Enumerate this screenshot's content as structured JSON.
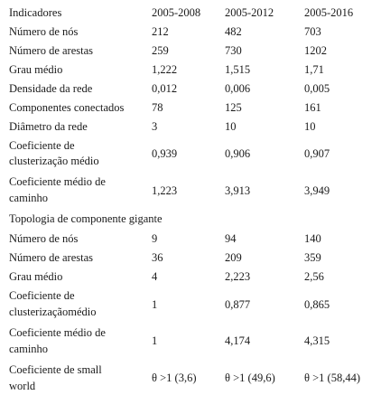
{
  "table": {
    "header": {
      "label": "Indicadores",
      "cols": [
        "2005-2008",
        "2005-2012",
        "2005-2016"
      ]
    },
    "rows": [
      {
        "label": "Número de nós",
        "values": [
          "212",
          "482",
          "703"
        ]
      },
      {
        "label": "Número de arestas",
        "values": [
          "259",
          "730",
          "1202"
        ]
      },
      {
        "label": "Grau médio",
        "values": [
          "1,222",
          "1,515",
          "1,71"
        ]
      },
      {
        "label": "Densidade da rede",
        "values": [
          "0,012",
          "0,006",
          "0,005"
        ]
      },
      {
        "label": "Componentes conectados",
        "values": [
          "78",
          "125",
          "161"
        ]
      },
      {
        "label": "Diâmetro da rede",
        "values": [
          "3",
          "10",
          "10"
        ]
      },
      {
        "label_l1": "Coeficiente de",
        "label_l2": "clusterização médio",
        "values": [
          "0,939",
          "0,906",
          "0,907"
        ]
      },
      {
        "label_l1": "Coeficiente médio de",
        "label_l2": "caminho",
        "values": [
          "1,223",
          "3,913",
          "3,949"
        ]
      }
    ],
    "section_title": "Topologia de componente gigante",
    "giant_rows": [
      {
        "label": "Número de nós",
        "values": [
          "9",
          "94",
          "140"
        ]
      },
      {
        "label": "Número de arestas",
        "values": [
          "36",
          "209",
          "359"
        ]
      },
      {
        "label": "Grau médio",
        "values": [
          "4",
          "2,223",
          "2,56"
        ]
      },
      {
        "label_l1": "Coeficiente de",
        "label_l2": "clusterizaçãomédio",
        "values": [
          "1",
          "0,877",
          "0,865"
        ]
      },
      {
        "label_l1": "Coeficiente médio de",
        "label_l2": "caminho",
        "values": [
          "1",
          "4,174",
          "4,315"
        ]
      },
      {
        "label_l1": "Coeficiente de small",
        "label_l2": "world",
        "values": [
          "θ >1 (3,6)",
          "θ >1 (49,6)",
          "θ >1 (58,44)"
        ]
      }
    ]
  }
}
